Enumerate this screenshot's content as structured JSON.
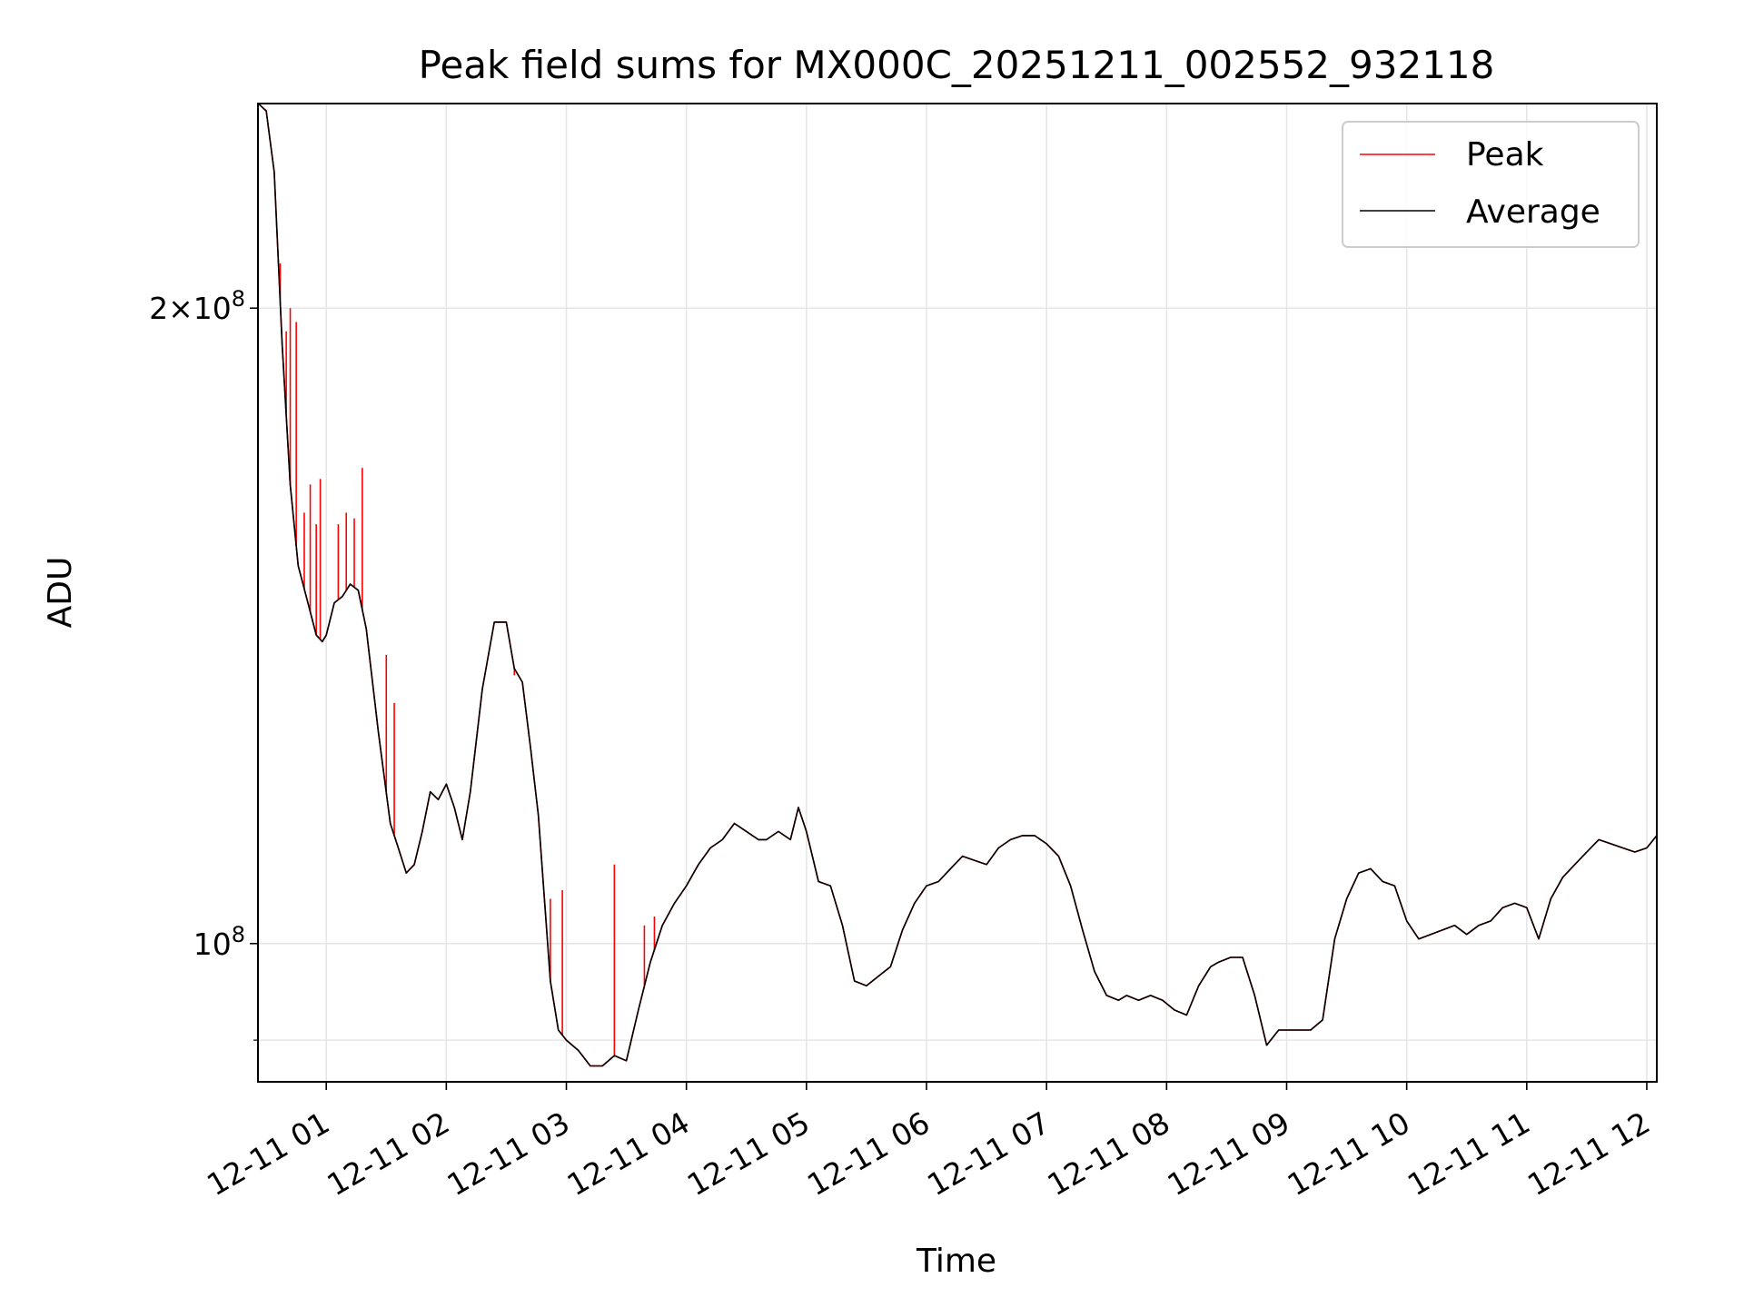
{
  "chart_data": {
    "type": "line",
    "title": "Peak field sums for MX000C_20251211_002552_932118",
    "xlabel": "Time",
    "ylabel": "ADU",
    "y_scale": "log",
    "ylim": [
      86000000,
      250000000
    ],
    "xlim": [
      "2025-12-11 00:25:52",
      "2025-12-11 12:05:00"
    ],
    "x_ticks": [
      "12-11 01",
      "12-11 02",
      "12-11 03",
      "12-11 04",
      "12-11 05",
      "12-11 06",
      "12-11 07",
      "12-11 08",
      "12-11 09",
      "12-11 10",
      "12-11 11",
      "12-11 12"
    ],
    "y_ticks": [
      {
        "value": 200000000,
        "mantissa": "2",
        "exponent": "8"
      },
      {
        "value": 100000000,
        "mantissa": "",
        "exponent": "8"
      }
    ],
    "grid": true,
    "legend_position": "upper right",
    "x": [
      "00:26",
      "00:30",
      "00:34",
      "00:38",
      "00:42",
      "00:46",
      "00:50",
      "00:55",
      "00:58",
      "01:00",
      "01:04",
      "01:08",
      "01:12",
      "01:16",
      "01:20",
      "01:26",
      "01:32",
      "01:36",
      "01:40",
      "01:44",
      "01:48",
      "01:52",
      "01:56",
      "02:00",
      "02:04",
      "02:08",
      "02:12",
      "02:18",
      "02:24",
      "02:30",
      "02:34",
      "02:38",
      "02:42",
      "02:46",
      "02:52",
      "02:56",
      "03:00",
      "03:06",
      "03:12",
      "03:18",
      "03:24",
      "03:30",
      "03:36",
      "03:42",
      "03:48",
      "03:54",
      "04:00",
      "04:06",
      "04:12",
      "04:18",
      "04:24",
      "04:30",
      "04:36",
      "04:40",
      "04:46",
      "04:52",
      "04:56",
      "05:00",
      "05:06",
      "05:12",
      "05:18",
      "05:24",
      "05:30",
      "05:36",
      "05:42",
      "05:48",
      "05:54",
      "06:00",
      "06:06",
      "06:12",
      "06:18",
      "06:24",
      "06:30",
      "06:36",
      "06:42",
      "06:48",
      "06:54",
      "07:00",
      "07:06",
      "07:12",
      "07:18",
      "07:24",
      "07:30",
      "07:36",
      "07:40",
      "07:46",
      "07:52",
      "07:58",
      "08:04",
      "08:10",
      "08:16",
      "08:22",
      "08:26",
      "08:32",
      "08:38",
      "08:44",
      "08:50",
      "08:56",
      "09:00",
      "09:06",
      "09:12",
      "09:18",
      "09:24",
      "09:30",
      "09:36",
      "09:42",
      "09:48",
      "09:54",
      "10:00",
      "10:06",
      "10:12",
      "10:18",
      "10:24",
      "10:30",
      "10:36",
      "10:42",
      "10:48",
      "10:54",
      "11:00",
      "11:06",
      "11:12",
      "11:18",
      "11:24",
      "11:30",
      "11:36",
      "11:42",
      "11:48",
      "11:54",
      "12:00",
      "12:05"
    ],
    "series": [
      {
        "name": "Peak",
        "color": "#ff0000",
        "values": [
          250000000,
          248000000,
          232000000,
          192000000,
          165000000,
          151000000,
          146000000,
          140000000,
          139000000,
          140000000,
          145000000,
          146000000,
          148000000,
          147000000,
          141000000,
          126000000,
          114000000,
          111000000,
          108000000,
          109000000,
          113000000,
          118000000,
          117000000,
          119000000,
          116000000,
          112000000,
          118000000,
          132000000,
          142000000,
          142000000,
          135000000,
          133000000,
          124000000,
          115000000,
          96000000,
          91000000,
          90000000,
          89000000,
          87500000,
          87500000,
          88500000,
          88000000,
          93000000,
          98000000,
          102000000,
          104500000,
          106500000,
          109000000,
          111000000,
          112000000,
          114000000,
          113000000,
          112000000,
          112000000,
          113000000,
          112000000,
          116000000,
          113000000,
          107000000,
          106500000,
          102000000,
          96000000,
          95500000,
          96500000,
          97500000,
          101500000,
          104500000,
          106500000,
          107000000,
          108500000,
          110000000,
          109500000,
          109000000,
          111000000,
          112000000,
          112500000,
          112500000,
          111500000,
          110000000,
          106500000,
          101500000,
          97000000,
          94500000,
          94000000,
          94500000,
          94000000,
          94500000,
          94000000,
          93000000,
          92500000,
          95500000,
          97500000,
          98000000,
          98500000,
          98500000,
          94500000,
          89500000,
          91000000,
          91000000,
          91000000,
          91000000,
          92000000,
          100500000,
          105000000,
          108000000,
          108500000,
          107000000,
          106500000,
          102500000,
          100500000,
          101000000,
          101500000,
          102000000,
          101000000,
          102000000,
          102500000,
          104000000,
          104500000,
          104000000,
          100500000,
          105000000,
          107500000,
          109000000,
          110500000,
          112000000,
          111500000,
          111000000,
          110500000,
          111000000,
          112500000
        ]
      },
      {
        "name": "Average",
        "color": "#000000",
        "values": [
          250000000,
          248000000,
          232000000,
          192000000,
          165000000,
          151000000,
          146000000,
          140000000,
          139000000,
          140000000,
          145000000,
          146000000,
          148000000,
          147000000,
          141000000,
          126000000,
          114000000,
          111000000,
          108000000,
          109000000,
          113000000,
          118000000,
          117000000,
          119000000,
          116000000,
          112000000,
          118000000,
          132000000,
          142000000,
          142000000,
          135000000,
          133000000,
          124000000,
          115000000,
          96000000,
          91000000,
          90000000,
          89000000,
          87500000,
          87500000,
          88500000,
          88000000,
          93000000,
          98000000,
          102000000,
          104500000,
          106500000,
          109000000,
          111000000,
          112000000,
          114000000,
          113000000,
          112000000,
          112000000,
          113000000,
          112000000,
          116000000,
          113000000,
          107000000,
          106500000,
          102000000,
          96000000,
          95500000,
          96500000,
          97500000,
          101500000,
          104500000,
          106500000,
          107000000,
          108500000,
          110000000,
          109500000,
          109000000,
          111000000,
          112000000,
          112500000,
          112500000,
          111500000,
          110000000,
          106500000,
          101500000,
          97000000,
          94500000,
          94000000,
          94500000,
          94000000,
          94500000,
          94000000,
          93000000,
          92500000,
          95500000,
          97500000,
          98000000,
          98500000,
          98500000,
          94500000,
          89500000,
          91000000,
          91000000,
          91000000,
          91000000,
          92000000,
          100500000,
          105000000,
          108000000,
          108500000,
          107000000,
          106500000,
          102500000,
          100500000,
          101000000,
          101500000,
          102000000,
          101000000,
          102000000,
          102500000,
          104000000,
          104500000,
          104000000,
          100500000,
          105000000,
          107500000,
          109000000,
          110500000,
          112000000,
          111500000,
          111000000,
          110500000,
          111000000,
          112500000
        ]
      }
    ],
    "peak_spikes": [
      {
        "x": "00:37",
        "y": 210000000
      },
      {
        "x": "00:40",
        "y": 195000000
      },
      {
        "x": "00:42",
        "y": 200000000
      },
      {
        "x": "00:45",
        "y": 197000000
      },
      {
        "x": "00:49",
        "y": 160000000
      },
      {
        "x": "00:52",
        "y": 165000000
      },
      {
        "x": "00:55",
        "y": 158000000
      },
      {
        "x": "00:57",
        "y": 166000000
      },
      {
        "x": "01:06",
        "y": 158000000
      },
      {
        "x": "01:10",
        "y": 160000000
      },
      {
        "x": "01:14",
        "y": 159000000
      },
      {
        "x": "01:18",
        "y": 168000000
      },
      {
        "x": "01:30",
        "y": 137000000
      },
      {
        "x": "01:34",
        "y": 130000000
      },
      {
        "x": "02:34",
        "y": 134000000
      },
      {
        "x": "02:52",
        "y": 105000000
      },
      {
        "x": "02:58",
        "y": 106000000
      },
      {
        "x": "03:24",
        "y": 109000000
      },
      {
        "x": "03:39",
        "y": 102000000
      },
      {
        "x": "03:44",
        "y": 103000000
      }
    ]
  }
}
